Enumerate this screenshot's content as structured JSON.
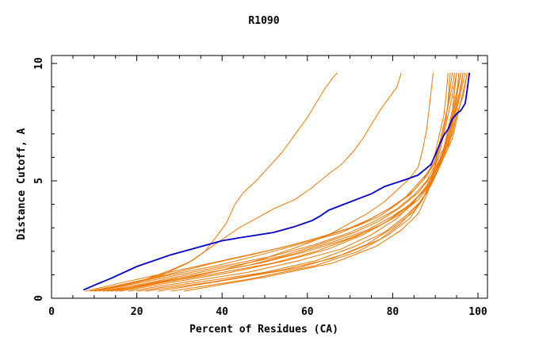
{
  "chart_data": {
    "type": "line",
    "title": "R1090",
    "xlabel": "Percent of Residues (CA)",
    "ylabel": "Distance Cutoff, A",
    "xlim": [
      0,
      100
    ],
    "ylim": [
      0,
      10
    ],
    "x_ticks": [
      "0",
      "20",
      "40",
      "60",
      "80",
      "100"
    ],
    "y_ticks": [
      "0",
      "5",
      "10"
    ],
    "grid": false,
    "colors": {
      "highlight": "#0000cc",
      "others": "#ee7700"
    },
    "highlight_series": {
      "points": [
        [
          7.5,
          0.35
        ],
        [
          10,
          0.55
        ],
        [
          14,
          0.85
        ],
        [
          20,
          1.35
        ],
        [
          28,
          1.85
        ],
        [
          35,
          2.2
        ],
        [
          40,
          2.45
        ],
        [
          45,
          2.6
        ],
        [
          52,
          2.8
        ],
        [
          57,
          3.05
        ],
        [
          61,
          3.3
        ],
        [
          63,
          3.5
        ],
        [
          65,
          3.75
        ],
        [
          70,
          4.1
        ],
        [
          75,
          4.45
        ],
        [
          78,
          4.75
        ],
        [
          83,
          5.05
        ],
        [
          86,
          5.25
        ],
        [
          89,
          5.7
        ],
        [
          90,
          6.1
        ],
        [
          91,
          6.55
        ],
        [
          92,
          6.95
        ],
        [
          93,
          7.2
        ],
        [
          94,
          7.65
        ],
        [
          95,
          7.85
        ],
        [
          96,
          8.0
        ],
        [
          97,
          8.3
        ],
        [
          97.5,
          8.9
        ],
        [
          98,
          9.6
        ]
      ]
    },
    "series": [
      {
        "points": [
          [
            9,
            0.3
          ],
          [
            15,
            0.5
          ],
          [
            22,
            0.8
          ],
          [
            28,
            1.2
          ],
          [
            33,
            1.6
          ],
          [
            36,
            2.0
          ],
          [
            39,
            2.7
          ],
          [
            41,
            3.2
          ],
          [
            43,
            4.0
          ],
          [
            45,
            4.5
          ],
          [
            48,
            5.0
          ],
          [
            51,
            5.6
          ],
          [
            54,
            6.2
          ],
          [
            56,
            6.7
          ],
          [
            58,
            7.2
          ],
          [
            60,
            7.7
          ],
          [
            62,
            8.3
          ],
          [
            64,
            8.9
          ],
          [
            66,
            9.4
          ],
          [
            67,
            9.6
          ]
        ]
      },
      {
        "points": [
          [
            10,
            0.3
          ],
          [
            18,
            0.6
          ],
          [
            26,
            1.0
          ],
          [
            32,
            1.5
          ],
          [
            36,
            2.0
          ],
          [
            40,
            2.5
          ],
          [
            44,
            3.0
          ],
          [
            48,
            3.4
          ],
          [
            52,
            3.8
          ],
          [
            57,
            4.2
          ],
          [
            61,
            4.7
          ],
          [
            65,
            5.3
          ],
          [
            68,
            5.7
          ],
          [
            71,
            6.3
          ],
          [
            73,
            6.8
          ],
          [
            75,
            7.4
          ],
          [
            77,
            8.0
          ],
          [
            79,
            8.5
          ],
          [
            81,
            9.0
          ],
          [
            82,
            9.6
          ]
        ]
      },
      {
        "points": [
          [
            12,
            0.3
          ],
          [
            20,
            0.5
          ],
          [
            30,
            0.8
          ],
          [
            40,
            1.2
          ],
          [
            50,
            1.7
          ],
          [
            58,
            2.2
          ],
          [
            65,
            2.7
          ],
          [
            70,
            3.2
          ],
          [
            74,
            3.6
          ],
          [
            78,
            4.1
          ],
          [
            81,
            4.6
          ],
          [
            84,
            5.1
          ],
          [
            86,
            5.6
          ],
          [
            87,
            6.3
          ],
          [
            88,
            7.2
          ],
          [
            88.5,
            8.0
          ],
          [
            89,
            8.8
          ],
          [
            89.5,
            9.6
          ]
        ]
      },
      {
        "points": [
          [
            8,
            0.3
          ],
          [
            15,
            0.6
          ],
          [
            25,
            1.0
          ],
          [
            35,
            1.4
          ],
          [
            45,
            1.8
          ],
          [
            55,
            2.2
          ],
          [
            63,
            2.6
          ],
          [
            70,
            3.0
          ],
          [
            75,
            3.4
          ],
          [
            80,
            3.9
          ],
          [
            84,
            4.4
          ],
          [
            87,
            5.0
          ],
          [
            89,
            5.6
          ],
          [
            90,
            6.2
          ],
          [
            91,
            7.0
          ],
          [
            92,
            7.8
          ],
          [
            92.5,
            8.6
          ],
          [
            93,
            9.6
          ]
        ]
      },
      {
        "points": [
          [
            9,
            0.3
          ],
          [
            17,
            0.6
          ],
          [
            27,
            1.0
          ],
          [
            38,
            1.5
          ],
          [
            48,
            1.9
          ],
          [
            57,
            2.3
          ],
          [
            65,
            2.7
          ],
          [
            72,
            3.1
          ],
          [
            77,
            3.5
          ],
          [
            81,
            4.0
          ],
          [
            85,
            4.6
          ],
          [
            88,
            5.2
          ],
          [
            90,
            5.9
          ],
          [
            91,
            6.6
          ],
          [
            92,
            7.4
          ],
          [
            93,
            8.2
          ],
          [
            94,
            9.0
          ],
          [
            94.5,
            9.6
          ]
        ]
      },
      {
        "points": [
          [
            10,
            0.3
          ],
          [
            18,
            0.6
          ],
          [
            28,
            1.0
          ],
          [
            39,
            1.4
          ],
          [
            50,
            1.9
          ],
          [
            60,
            2.4
          ],
          [
            68,
            2.8
          ],
          [
            74,
            3.3
          ],
          [
            79,
            3.8
          ],
          [
            83,
            4.3
          ],
          [
            86,
            4.9
          ],
          [
            89,
            5.5
          ],
          [
            91,
            6.2
          ],
          [
            92,
            7.0
          ],
          [
            93,
            7.8
          ],
          [
            94,
            8.6
          ],
          [
            95,
            9.6
          ]
        ]
      },
      {
        "points": [
          [
            11,
            0.3
          ],
          [
            19,
            0.6
          ],
          [
            30,
            1.0
          ],
          [
            41,
            1.4
          ],
          [
            52,
            1.8
          ],
          [
            62,
            2.3
          ],
          [
            70,
            2.8
          ],
          [
            76,
            3.3
          ],
          [
            81,
            3.8
          ],
          [
            85,
            4.4
          ],
          [
            88,
            5.0
          ],
          [
            90,
            5.7
          ],
          [
            92,
            6.4
          ],
          [
            93,
            7.2
          ],
          [
            94,
            8.0
          ],
          [
            95,
            8.8
          ],
          [
            96,
            9.6
          ]
        ]
      },
      {
        "points": [
          [
            12,
            0.3
          ],
          [
            21,
            0.6
          ],
          [
            32,
            1.0
          ],
          [
            43,
            1.4
          ],
          [
            54,
            1.8
          ],
          [
            63,
            2.3
          ],
          [
            71,
            2.8
          ],
          [
            77,
            3.3
          ],
          [
            82,
            3.9
          ],
          [
            86,
            4.5
          ],
          [
            89,
            5.2
          ],
          [
            91,
            5.9
          ],
          [
            93,
            6.7
          ],
          [
            94,
            7.5
          ],
          [
            95,
            8.3
          ],
          [
            96,
            9.0
          ],
          [
            96.5,
            9.6
          ]
        ]
      },
      {
        "points": [
          [
            13,
            0.3
          ],
          [
            23,
            0.6
          ],
          [
            34,
            1.0
          ],
          [
            46,
            1.4
          ],
          [
            57,
            1.9
          ],
          [
            66,
            2.4
          ],
          [
            74,
            2.9
          ],
          [
            80,
            3.5
          ],
          [
            85,
            4.1
          ],
          [
            88,
            4.8
          ],
          [
            90,
            5.5
          ],
          [
            92,
            6.2
          ],
          [
            93,
            7.0
          ],
          [
            94,
            7.8
          ],
          [
            95,
            8.6
          ],
          [
            96,
            9.6
          ]
        ]
      },
      {
        "points": [
          [
            14,
            0.3
          ],
          [
            25,
            0.7
          ],
          [
            37,
            1.1
          ],
          [
            49,
            1.5
          ],
          [
            60,
            2.0
          ],
          [
            69,
            2.5
          ],
          [
            76,
            3.0
          ],
          [
            82,
            3.6
          ],
          [
            86,
            4.2
          ],
          [
            89,
            4.9
          ],
          [
            91,
            5.6
          ],
          [
            93,
            6.4
          ],
          [
            94,
            7.2
          ],
          [
            95,
            8.0
          ],
          [
            96,
            8.8
          ],
          [
            97,
            9.6
          ]
        ]
      },
      {
        "points": [
          [
            15,
            0.3
          ],
          [
            27,
            0.7
          ],
          [
            40,
            1.1
          ],
          [
            52,
            1.5
          ],
          [
            62,
            2.0
          ],
          [
            71,
            2.6
          ],
          [
            78,
            3.2
          ],
          [
            83,
            3.8
          ],
          [
            87,
            4.5
          ],
          [
            90,
            5.2
          ],
          [
            92,
            6.0
          ],
          [
            94,
            6.8
          ],
          [
            95,
            7.6
          ],
          [
            96,
            8.4
          ],
          [
            97,
            9.2
          ],
          [
            97.5,
            9.6
          ]
        ]
      },
      {
        "points": [
          [
            16,
            0.3
          ],
          [
            29,
            0.7
          ],
          [
            42,
            1.1
          ],
          [
            55,
            1.6
          ],
          [
            65,
            2.1
          ],
          [
            73,
            2.7
          ],
          [
            79,
            3.3
          ],
          [
            84,
            4.0
          ],
          [
            88,
            4.7
          ],
          [
            90,
            5.4
          ],
          [
            92,
            6.1
          ],
          [
            94,
            7.0
          ],
          [
            95,
            7.8
          ],
          [
            96.5,
            8.6
          ],
          [
            97.5,
            9.6
          ]
        ]
      },
      {
        "points": [
          [
            18,
            0.3
          ],
          [
            32,
            0.7
          ],
          [
            46,
            1.1
          ],
          [
            58,
            1.6
          ],
          [
            68,
            2.1
          ],
          [
            75,
            2.7
          ],
          [
            81,
            3.4
          ],
          [
            85,
            4.1
          ],
          [
            88,
            4.8
          ],
          [
            90,
            5.5
          ],
          [
            92,
            6.2
          ],
          [
            93,
            7.0
          ],
          [
            94.5,
            7.8
          ],
          [
            95.5,
            8.6
          ],
          [
            96.5,
            9.6
          ]
        ]
      },
      {
        "points": [
          [
            20,
            0.3
          ],
          [
            35,
            0.7
          ],
          [
            50,
            1.1
          ],
          [
            62,
            1.6
          ],
          [
            71,
            2.2
          ],
          [
            78,
            2.8
          ],
          [
            83,
            3.5
          ],
          [
            87,
            4.2
          ],
          [
            89,
            5.0
          ],
          [
            91,
            5.8
          ],
          [
            93,
            6.6
          ],
          [
            94,
            7.4
          ],
          [
            95,
            8.2
          ],
          [
            96,
            9.0
          ],
          [
            96.5,
            9.6
          ]
        ]
      },
      {
        "points": [
          [
            22,
            0.3
          ],
          [
            38,
            0.7
          ],
          [
            54,
            1.2
          ],
          [
            66,
            1.7
          ],
          [
            74,
            2.3
          ],
          [
            80,
            3.0
          ],
          [
            85,
            3.7
          ],
          [
            88,
            4.5
          ],
          [
            90,
            5.3
          ],
          [
            92,
            6.1
          ],
          [
            93,
            6.9
          ],
          [
            94,
            7.7
          ],
          [
            95,
            8.5
          ],
          [
            95.5,
            9.6
          ]
        ]
      },
      {
        "points": [
          [
            25,
            0.3
          ],
          [
            42,
            0.8
          ],
          [
            58,
            1.3
          ],
          [
            69,
            1.9
          ],
          [
            77,
            2.5
          ],
          [
            82,
            3.2
          ],
          [
            86,
            4.0
          ],
          [
            89,
            4.8
          ],
          [
            91,
            5.6
          ],
          [
            92,
            6.4
          ],
          [
            93,
            7.2
          ],
          [
            94,
            8.0
          ],
          [
            94.5,
            8.8
          ],
          [
            95,
            9.6
          ]
        ]
      },
      {
        "points": [
          [
            28,
            0.3
          ],
          [
            46,
            0.8
          ],
          [
            62,
            1.4
          ],
          [
            72,
            2.0
          ],
          [
            79,
            2.7
          ],
          [
            84,
            3.4
          ],
          [
            87,
            4.2
          ],
          [
            89,
            5.0
          ],
          [
            90,
            5.8
          ],
          [
            91,
            6.6
          ],
          [
            92,
            7.4
          ],
          [
            93,
            8.2
          ],
          [
            93.5,
            9.0
          ],
          [
            94,
            9.6
          ]
        ]
      },
      {
        "points": [
          [
            31,
            0.3
          ],
          [
            50,
            0.9
          ],
          [
            66,
            1.5
          ],
          [
            76,
            2.2
          ],
          [
            82,
            2.9
          ],
          [
            86,
            3.6
          ],
          [
            88,
            4.4
          ],
          [
            89.5,
            5.2
          ],
          [
            90.5,
            6.0
          ],
          [
            91.5,
            6.8
          ],
          [
            92.5,
            7.6
          ],
          [
            93,
            8.4
          ],
          [
            93.5,
            9.6
          ]
        ]
      }
    ]
  }
}
